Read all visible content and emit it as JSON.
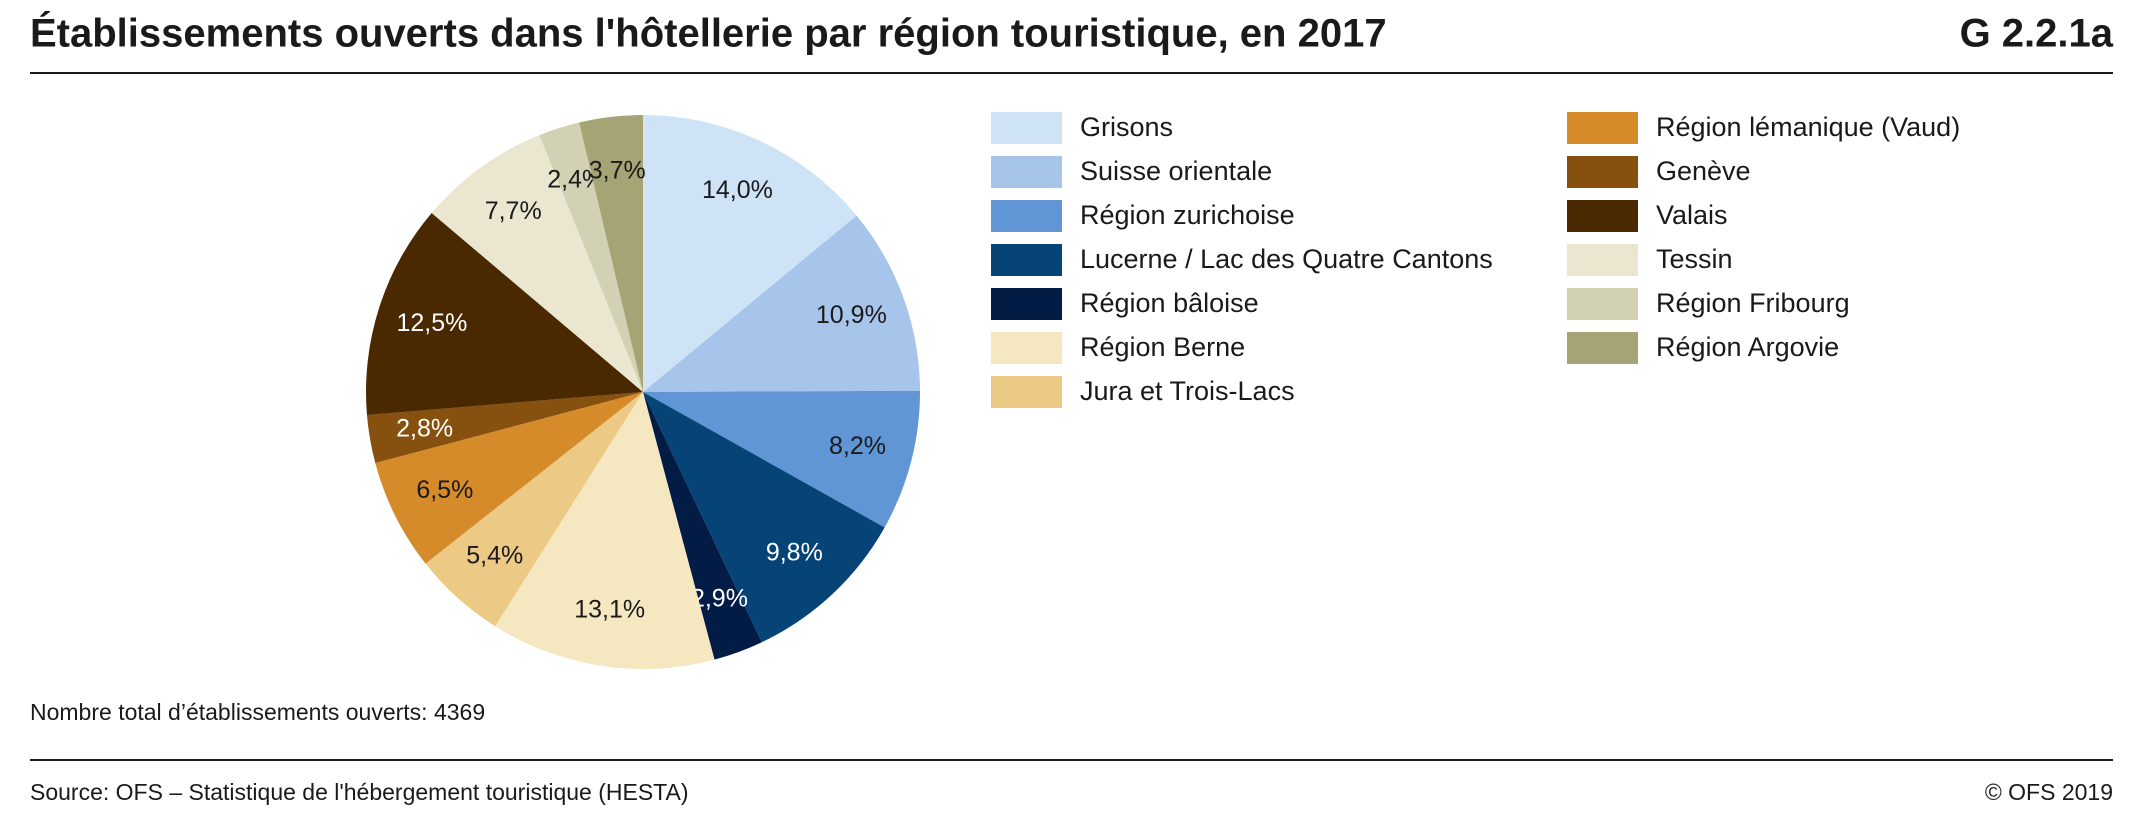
{
  "chart_data": {
    "type": "pie",
    "title": "Établissements ouverts dans l'hôtellerie par région touristique, en 2017",
    "code": "G 2.2.1a",
    "categories": [
      "Grisons",
      "Suisse orientale",
      "Région zurichoise",
      "Lucerne / Lac des Quatre Cantons",
      "Région bâloise",
      "Région Berne",
      "Jura et Trois-Lacs",
      "Région lémanique (Vaud)",
      "Genève",
      "Valais",
      "Tessin",
      "Région Fribourg",
      "Région Argovie"
    ],
    "values": [
      14.0,
      10.9,
      8.2,
      9.8,
      2.9,
      13.1,
      5.4,
      6.5,
      2.8,
      12.5,
      7.7,
      2.4,
      3.7
    ],
    "value_labels": [
      "14,0%",
      "10,9%",
      "8,2%",
      "9,8%",
      "2,9%",
      "13,1%",
      "5,4%",
      "6,5%",
      "2,8%",
      "12,5%",
      "7,7%",
      "2,4%",
      "3,7%"
    ],
    "colors": [
      "#cfe3f7",
      "#a7c5ea",
      "#6096d6",
      "#064477",
      "#031c45",
      "#f5e7c0",
      "#ecc985",
      "#d68b2a",
      "#86500f",
      "#4a2800",
      "#eae6d0",
      "#d3d1b3",
      "#a6a474"
    ],
    "note": "Nombre total d’établissements ouverts: 4369",
    "source": "Source: OFS – Statistique de l'hébergement touristique (HESTA)",
    "copyright": "© OFS 2019"
  }
}
